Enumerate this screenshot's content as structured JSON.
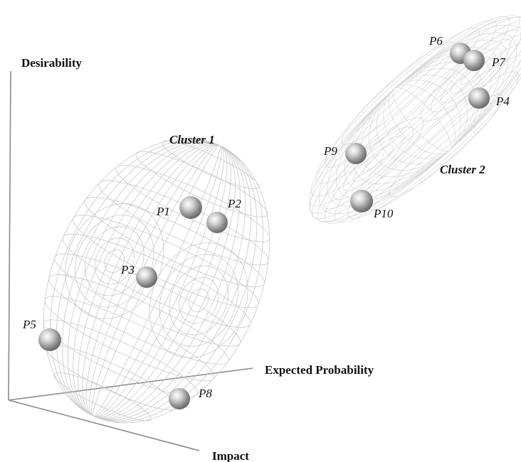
{
  "axes": {
    "desirability": "Desirability",
    "expected_probability": "Expected Probability",
    "impact": "Impact"
  },
  "clusters": [
    {
      "label": "Cluster 1"
    },
    {
      "label": "Cluster 2"
    }
  ],
  "points": [
    {
      "label": "P1"
    },
    {
      "label": "P2"
    },
    {
      "label": "P3"
    },
    {
      "label": "P4"
    },
    {
      "label": "P5"
    },
    {
      "label": "P6"
    },
    {
      "label": "P7"
    },
    {
      "label": "P8"
    },
    {
      "label": "P9"
    },
    {
      "label": "P10"
    }
  ]
}
